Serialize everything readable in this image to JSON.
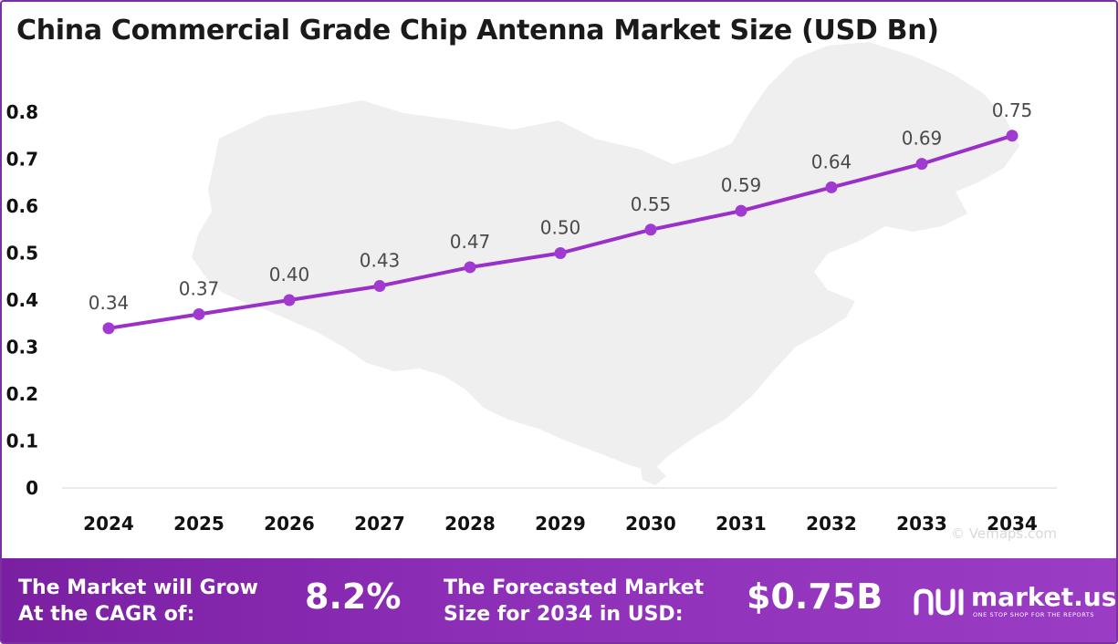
{
  "title": "China Commercial Grade Chip Antenna Market Size (USD Bn)",
  "watermark": "© Vemaps.com",
  "chart_data": {
    "type": "line",
    "x": [
      "2024",
      "2025",
      "2026",
      "2027",
      "2028",
      "2029",
      "2030",
      "2031",
      "2032",
      "2033",
      "2034"
    ],
    "series": [
      {
        "values": [
          0.34,
          0.37,
          0.4,
          0.43,
          0.47,
          0.5,
          0.55,
          0.59,
          0.64,
          0.69,
          0.75
        ]
      }
    ],
    "data_labels": [
      "0.34",
      "0.37",
      "0.40",
      "0.43",
      "0.47",
      "0.50",
      "0.55",
      "0.59",
      "0.64",
      "0.69",
      "0.75"
    ],
    "y_ticks": [
      "0",
      "0.1",
      "0.2",
      "0.3",
      "0.4",
      "0.5",
      "0.6",
      "0.7",
      "0.8"
    ],
    "ylim": [
      0,
      0.8
    ],
    "grid": false,
    "legend": "none",
    "line_color": "#9b2fc9",
    "marker_color": "#a13ad0"
  },
  "footer": {
    "cagr_label_line1": "The Market will Grow",
    "cagr_label_line2": "At the CAGR of:",
    "cagr_value": "8.2%",
    "forecast_label_line1": "The Forecasted Market",
    "forecast_label_line2": "Size for 2034 in USD:",
    "forecast_value": "$0.75B",
    "brand_name": "market.us",
    "brand_tagline": "ONE STOP SHOP FOR THE REPORTS",
    "background_color": "#8a2bb5"
  }
}
